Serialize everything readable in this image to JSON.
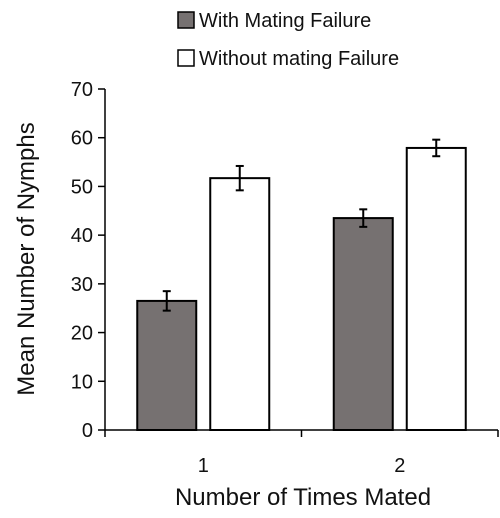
{
  "chart_data": {
    "type": "bar",
    "title": "",
    "xlabel": "Number of Times Mated",
    "ylabel": "Mean Number of Nymphs",
    "categories": [
      "1",
      "2"
    ],
    "ylim": [
      0,
      70
    ],
    "yticks": [
      0,
      10,
      20,
      30,
      40,
      50,
      60,
      70
    ],
    "grid": false,
    "legend_position": "top",
    "series": [
      {
        "name": "With Mating Failure",
        "values": [
          26.5,
          43.5
        ],
        "errors": [
          2.0,
          1.8
        ],
        "color": "#767171"
      },
      {
        "name": "Without mating Failure",
        "values": [
          51.7,
          57.9
        ],
        "errors": [
          2.5,
          1.7
        ],
        "color": "#ffffff"
      }
    ]
  }
}
